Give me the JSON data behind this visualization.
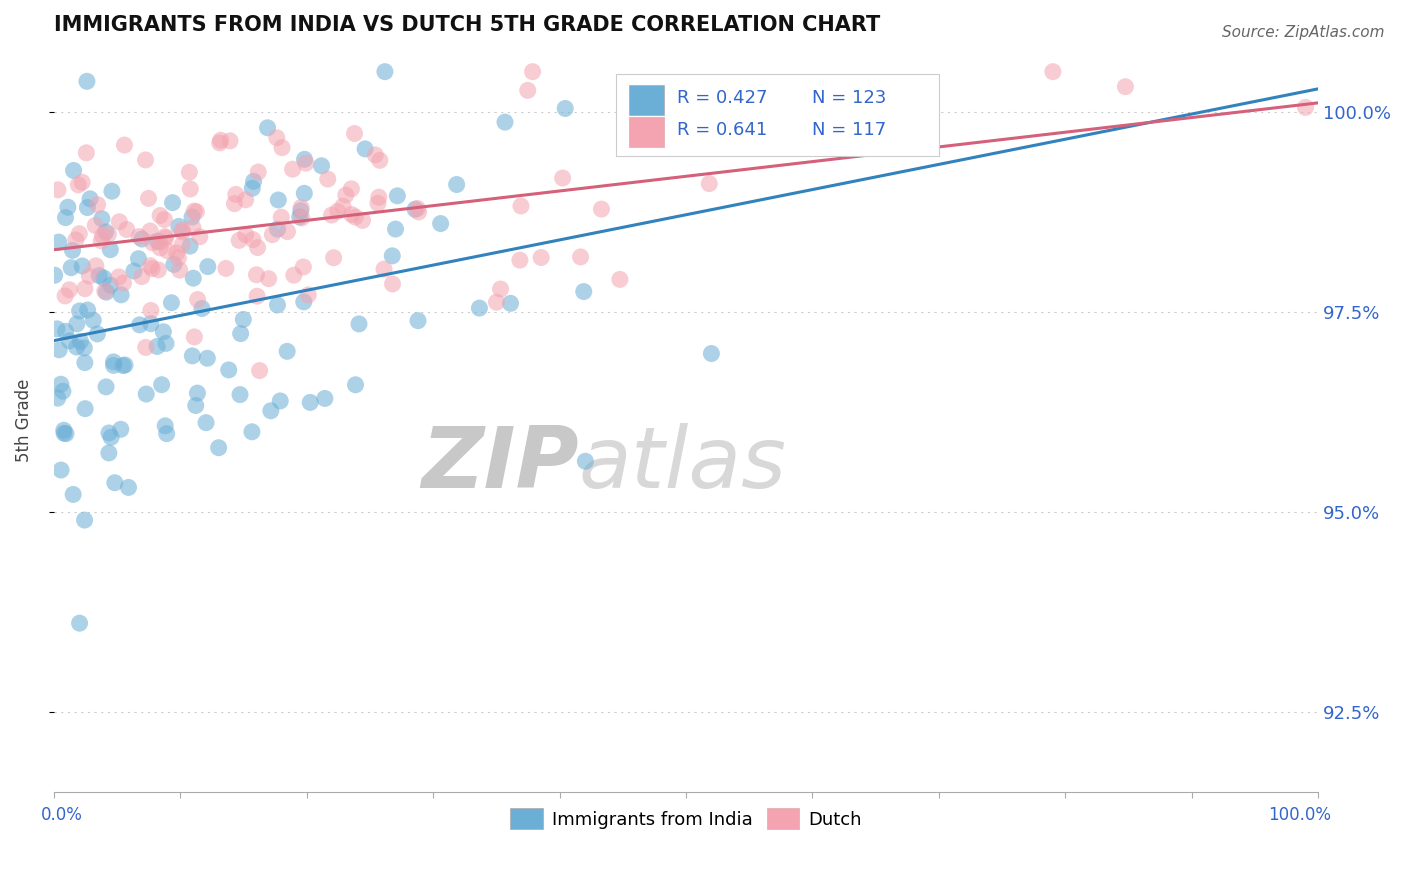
{
  "title": "IMMIGRANTS FROM INDIA VS DUTCH 5TH GRADE CORRELATION CHART",
  "source_text": "Source: ZipAtlas.com",
  "ylabel": "5th Grade",
  "xmin": 0.0,
  "xmax": 100.0,
  "ymin": 91.5,
  "ymax": 100.8,
  "yticks": [
    92.5,
    95.0,
    97.5,
    100.0
  ],
  "ytick_labels": [
    "92.5%",
    "95.0%",
    "97.5%",
    "100.0%"
  ],
  "series1_color": "#6baed6",
  "series2_color": "#f4a3b0",
  "line1_color": "#3182bd",
  "line2_color": "#d4607a",
  "series1_label": "Immigrants from India",
  "series2_label": "Dutch",
  "legend_R1": "R = 0.427",
  "legend_N1": "N = 123",
  "legend_R2": "R = 0.641",
  "legend_N2": "N = 117",
  "legend_color": "#3366cc",
  "watermark_zip": "ZIP",
  "watermark_atlas": "atlas",
  "n1": 123,
  "n2": 117,
  "seed1": 42,
  "seed2": 123
}
